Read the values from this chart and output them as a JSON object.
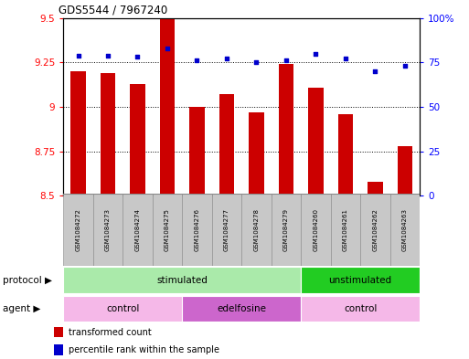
{
  "title": "GDS5544 / 7967240",
  "samples": [
    "GSM1084272",
    "GSM1084273",
    "GSM1084274",
    "GSM1084275",
    "GSM1084276",
    "GSM1084277",
    "GSM1084278",
    "GSM1084279",
    "GSM1084260",
    "GSM1084261",
    "GSM1084262",
    "GSM1084263"
  ],
  "bar_values": [
    9.2,
    9.19,
    9.13,
    9.5,
    9.0,
    9.07,
    8.97,
    9.24,
    9.11,
    8.96,
    8.58,
    8.78
  ],
  "percentile_values": [
    79,
    79,
    78,
    83,
    76,
    77,
    75,
    76,
    80,
    77,
    70,
    73
  ],
  "bar_color": "#cc0000",
  "dot_color": "#0000cc",
  "ylim_left": [
    8.5,
    9.5
  ],
  "ylim_right": [
    0,
    100
  ],
  "yticks_left": [
    8.5,
    8.75,
    9.0,
    9.25,
    9.5
  ],
  "ytick_labels_left": [
    "8.5",
    "8.75",
    "9",
    "9.25",
    "9.5"
  ],
  "yticks_right": [
    0,
    25,
    50,
    75,
    100
  ],
  "ytick_labels_right": [
    "0",
    "25",
    "50",
    "75",
    "100%"
  ],
  "grid_values": [
    8.75,
    9.0,
    9.25
  ],
  "protocol_groups": [
    {
      "label": "stimulated",
      "start": 0,
      "end": 8,
      "color": "#aaeaaa"
    },
    {
      "label": "unstimulated",
      "start": 8,
      "end": 12,
      "color": "#22cc22"
    }
  ],
  "agent_groups": [
    {
      "label": "control",
      "start": 0,
      "end": 4,
      "color": "#f5b8e8"
    },
    {
      "label": "edelfosine",
      "start": 4,
      "end": 8,
      "color": "#cc66cc"
    },
    {
      "label": "control",
      "start": 8,
      "end": 12,
      "color": "#f5b8e8"
    }
  ],
  "legend_bar_label": "transformed count",
  "legend_dot_label": "percentile rank within the sample",
  "label_protocol": "protocol",
  "label_agent": "agent",
  "bar_width": 0.5,
  "sample_box_color": "#c8c8c8",
  "sample_box_edge": "#888888"
}
